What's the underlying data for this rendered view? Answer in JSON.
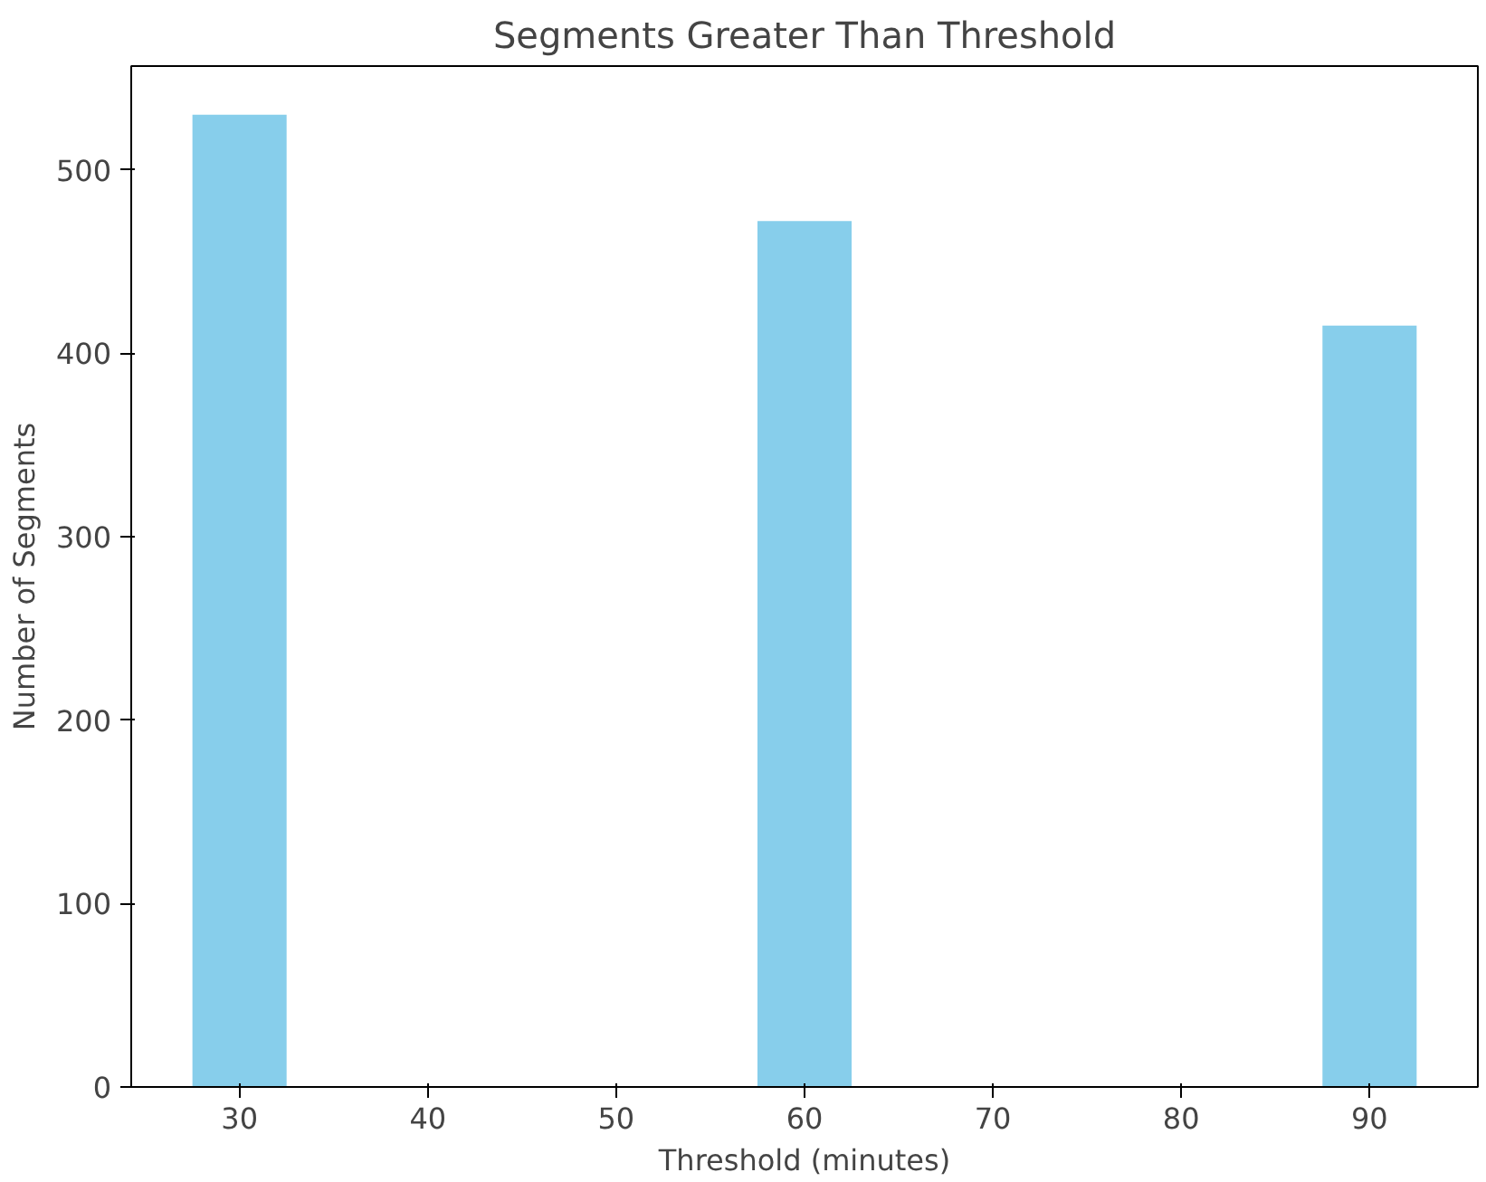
{
  "chart_data": {
    "type": "bar",
    "title": "Segments Greater Than Threshold",
    "xlabel": "Threshold (minutes)",
    "ylabel": "Number of Segments",
    "x": [
      30,
      60,
      90
    ],
    "series": [
      {
        "color": "#87ceeb",
        "values": [
          530,
          472,
          415
        ]
      }
    ],
    "xlim": [
      24.25,
      95.75
    ],
    "xticks": [
      30,
      40,
      50,
      60,
      70,
      80,
      90
    ],
    "ylim": [
      0,
      556.5
    ],
    "yticks": [
      0,
      100,
      200,
      300,
      400,
      500
    ]
  }
}
